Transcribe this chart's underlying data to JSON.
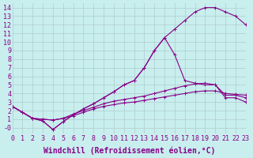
{
  "xlabel": "Windchill (Refroidissement éolien,°C)",
  "bg_color": "#c8eeee",
  "grid_color": "#b0cccc",
  "line_color": "#880088",
  "xlim": [
    0,
    23
  ],
  "ylim": [
    -0.7,
    14.5
  ],
  "xticks": [
    0,
    1,
    2,
    3,
    4,
    5,
    6,
    7,
    8,
    9,
    10,
    11,
    12,
    13,
    14,
    15,
    16,
    17,
    18,
    19,
    20,
    21,
    22,
    23
  ],
  "yticks": [
    0,
    1,
    2,
    3,
    4,
    5,
    6,
    7,
    8,
    9,
    10,
    11,
    12,
    13,
    14
  ],
  "ytick_labels": [
    "-0",
    "1",
    "2",
    "3",
    "4",
    "5",
    "6",
    "7",
    "8",
    "9",
    "10",
    "11",
    "12",
    "13",
    "14"
  ],
  "xlabel_fontsize": 7,
  "tick_fontsize": 6,
  "line1_y": [
    2.5,
    1.8,
    1.1,
    0.8,
    -0.2,
    0.7,
    1.5,
    2.2,
    2.8,
    3.5,
    4.2,
    5.0,
    5.5,
    7.0,
    9.0,
    10.5,
    11.5,
    12.5,
    13.5,
    14.0,
    14.0,
    13.5,
    13.0,
    12.0
  ],
  "line2_y": [
    2.5,
    1.8,
    1.1,
    0.8,
    -0.2,
    0.7,
    1.5,
    2.2,
    2.8,
    3.5,
    4.2,
    5.0,
    5.5,
    7.0,
    9.0,
    10.5,
    8.5,
    5.5,
    5.2,
    5.0,
    5.0,
    3.5,
    3.5,
    3.0
  ],
  "line3_y": [
    2.5,
    1.8,
    1.1,
    1.0,
    0.9,
    1.1,
    1.6,
    2.0,
    2.4,
    2.8,
    3.1,
    3.3,
    3.5,
    3.7,
    4.0,
    4.3,
    4.6,
    4.9,
    5.1,
    5.2,
    5.0,
    3.8,
    3.8,
    3.5
  ],
  "line4_y": [
    2.5,
    1.8,
    1.1,
    1.0,
    0.9,
    1.1,
    1.4,
    1.8,
    2.2,
    2.5,
    2.7,
    2.9,
    3.0,
    3.2,
    3.4,
    3.6,
    3.8,
    4.0,
    4.2,
    4.3,
    4.3,
    4.0,
    3.9,
    3.8
  ]
}
